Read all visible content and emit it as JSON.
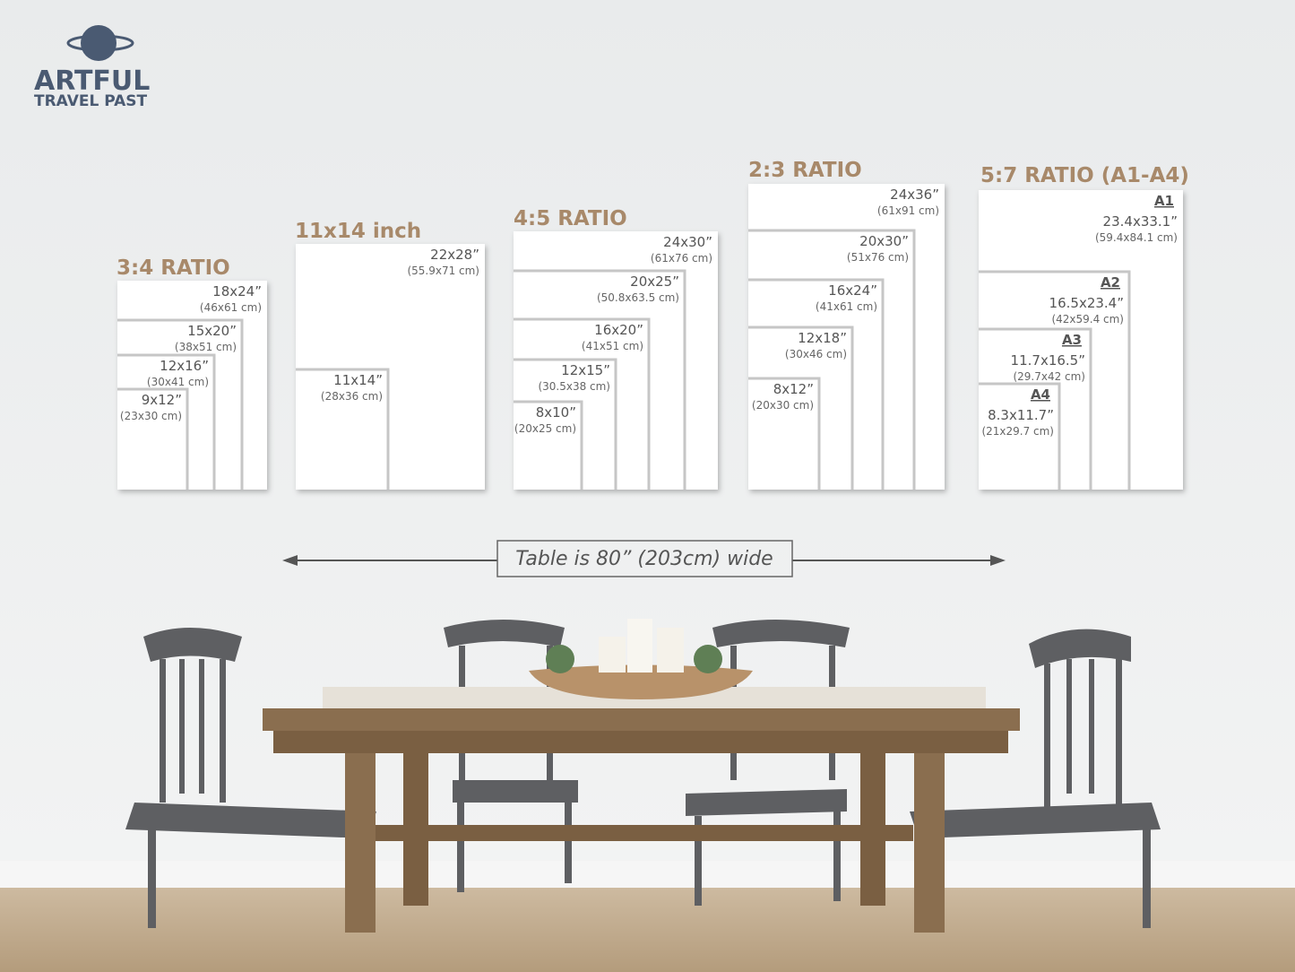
{
  "logo": {
    "title": "ARTFUL",
    "subtitle": "TRAVEL PAST"
  },
  "groups": [
    {
      "title": "3:4 RATIO",
      "sizes": [
        {
          "label": "18x24”",
          "metric": "(46x61 cm)"
        },
        {
          "label": "15x20”",
          "metric": "(38x51 cm)"
        },
        {
          "label": "12x16”",
          "metric": "(30x41 cm)"
        },
        {
          "label": "9x12”",
          "metric": "(23x30 cm)"
        }
      ]
    },
    {
      "title": "11x14 inch",
      "sizes": [
        {
          "label": "22x28”",
          "metric": "(55.9x71 cm)"
        },
        {
          "label": "11x14”",
          "metric": "(28x36 cm)"
        }
      ]
    },
    {
      "title": "4:5 RATIO",
      "sizes": [
        {
          "label": "24x30”",
          "metric": "(61x76 cm)"
        },
        {
          "label": "20x25”",
          "metric": "(50.8x63.5 cm)"
        },
        {
          "label": "16x20”",
          "metric": "(41x51 cm)"
        },
        {
          "label": "12x15”",
          "metric": "(30.5x38 cm)"
        },
        {
          "label": "8x10”",
          "metric": "(20x25 cm)"
        }
      ]
    },
    {
      "title": "2:3 RATIO",
      "sizes": [
        {
          "label": "24x36”",
          "metric": "(61x91 cm)"
        },
        {
          "label": "20x30”",
          "metric": "(51x76 cm)"
        },
        {
          "label": "16x24”",
          "metric": "(41x61 cm)"
        },
        {
          "label": "12x18”",
          "metric": "(30x46 cm)"
        },
        {
          "label": "8x12”",
          "metric": "(20x30 cm)"
        }
      ]
    },
    {
      "title": "5:7 RATIO (A1-A4)",
      "sizes": [
        {
          "name": "A1",
          "label": "23.4x33.1”",
          "metric": "(59.4x84.1 cm)"
        },
        {
          "name": "A2",
          "label": "16.5x23.4”",
          "metric": "(42x59.4 cm)"
        },
        {
          "name": "A3",
          "label": "11.7x16.5”",
          "metric": "(29.7x42 cm)"
        },
        {
          "name": "A4",
          "label": "8.3x11.7”",
          "metric": "(21x29.7 cm)"
        }
      ]
    }
  ],
  "width_note": "Table is 80” (203cm) wide"
}
